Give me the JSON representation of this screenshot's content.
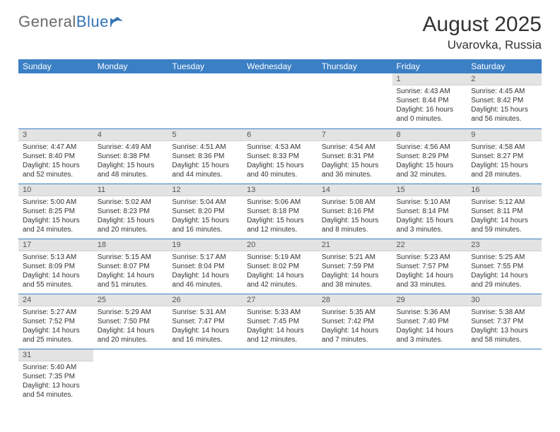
{
  "logo": {
    "general": "General",
    "blue": "Blue"
  },
  "title": "August 2025",
  "location": "Uvarovka, Russia",
  "header_bg": "#3b7fc4",
  "header_text": "#ffffff",
  "daynum_bg": "#e3e3e3",
  "border_color": "#3b7fc4",
  "weekdays": [
    "Sunday",
    "Monday",
    "Tuesday",
    "Wednesday",
    "Thursday",
    "Friday",
    "Saturday"
  ],
  "weeks": [
    [
      null,
      null,
      null,
      null,
      null,
      {
        "n": "1",
        "sr": "4:43 AM",
        "ss": "8:44 PM",
        "dl": "16 hours and 0 minutes."
      },
      {
        "n": "2",
        "sr": "4:45 AM",
        "ss": "8:42 PM",
        "dl": "15 hours and 56 minutes."
      }
    ],
    [
      {
        "n": "3",
        "sr": "4:47 AM",
        "ss": "8:40 PM",
        "dl": "15 hours and 52 minutes."
      },
      {
        "n": "4",
        "sr": "4:49 AM",
        "ss": "8:38 PM",
        "dl": "15 hours and 48 minutes."
      },
      {
        "n": "5",
        "sr": "4:51 AM",
        "ss": "8:36 PM",
        "dl": "15 hours and 44 minutes."
      },
      {
        "n": "6",
        "sr": "4:53 AM",
        "ss": "8:33 PM",
        "dl": "15 hours and 40 minutes."
      },
      {
        "n": "7",
        "sr": "4:54 AM",
        "ss": "8:31 PM",
        "dl": "15 hours and 36 minutes."
      },
      {
        "n": "8",
        "sr": "4:56 AM",
        "ss": "8:29 PM",
        "dl": "15 hours and 32 minutes."
      },
      {
        "n": "9",
        "sr": "4:58 AM",
        "ss": "8:27 PM",
        "dl": "15 hours and 28 minutes."
      }
    ],
    [
      {
        "n": "10",
        "sr": "5:00 AM",
        "ss": "8:25 PM",
        "dl": "15 hours and 24 minutes."
      },
      {
        "n": "11",
        "sr": "5:02 AM",
        "ss": "8:23 PM",
        "dl": "15 hours and 20 minutes."
      },
      {
        "n": "12",
        "sr": "5:04 AM",
        "ss": "8:20 PM",
        "dl": "15 hours and 16 minutes."
      },
      {
        "n": "13",
        "sr": "5:06 AM",
        "ss": "8:18 PM",
        "dl": "15 hours and 12 minutes."
      },
      {
        "n": "14",
        "sr": "5:08 AM",
        "ss": "8:16 PM",
        "dl": "15 hours and 8 minutes."
      },
      {
        "n": "15",
        "sr": "5:10 AM",
        "ss": "8:14 PM",
        "dl": "15 hours and 3 minutes."
      },
      {
        "n": "16",
        "sr": "5:12 AM",
        "ss": "8:11 PM",
        "dl": "14 hours and 59 minutes."
      }
    ],
    [
      {
        "n": "17",
        "sr": "5:13 AM",
        "ss": "8:09 PM",
        "dl": "14 hours and 55 minutes."
      },
      {
        "n": "18",
        "sr": "5:15 AM",
        "ss": "8:07 PM",
        "dl": "14 hours and 51 minutes."
      },
      {
        "n": "19",
        "sr": "5:17 AM",
        "ss": "8:04 PM",
        "dl": "14 hours and 46 minutes."
      },
      {
        "n": "20",
        "sr": "5:19 AM",
        "ss": "8:02 PM",
        "dl": "14 hours and 42 minutes."
      },
      {
        "n": "21",
        "sr": "5:21 AM",
        "ss": "7:59 PM",
        "dl": "14 hours and 38 minutes."
      },
      {
        "n": "22",
        "sr": "5:23 AM",
        "ss": "7:57 PM",
        "dl": "14 hours and 33 minutes."
      },
      {
        "n": "23",
        "sr": "5:25 AM",
        "ss": "7:55 PM",
        "dl": "14 hours and 29 minutes."
      }
    ],
    [
      {
        "n": "24",
        "sr": "5:27 AM",
        "ss": "7:52 PM",
        "dl": "14 hours and 25 minutes."
      },
      {
        "n": "25",
        "sr": "5:29 AM",
        "ss": "7:50 PM",
        "dl": "14 hours and 20 minutes."
      },
      {
        "n": "26",
        "sr": "5:31 AM",
        "ss": "7:47 PM",
        "dl": "14 hours and 16 minutes."
      },
      {
        "n": "27",
        "sr": "5:33 AM",
        "ss": "7:45 PM",
        "dl": "14 hours and 12 minutes."
      },
      {
        "n": "28",
        "sr": "5:35 AM",
        "ss": "7:42 PM",
        "dl": "14 hours and 7 minutes."
      },
      {
        "n": "29",
        "sr": "5:36 AM",
        "ss": "7:40 PM",
        "dl": "14 hours and 3 minutes."
      },
      {
        "n": "30",
        "sr": "5:38 AM",
        "ss": "7:37 PM",
        "dl": "13 hours and 58 minutes."
      }
    ],
    [
      {
        "n": "31",
        "sr": "5:40 AM",
        "ss": "7:35 PM",
        "dl": "13 hours and 54 minutes."
      },
      null,
      null,
      null,
      null,
      null,
      null
    ]
  ],
  "labels": {
    "sunrise": "Sunrise: ",
    "sunset": "Sunset: ",
    "daylight": "Daylight: "
  }
}
